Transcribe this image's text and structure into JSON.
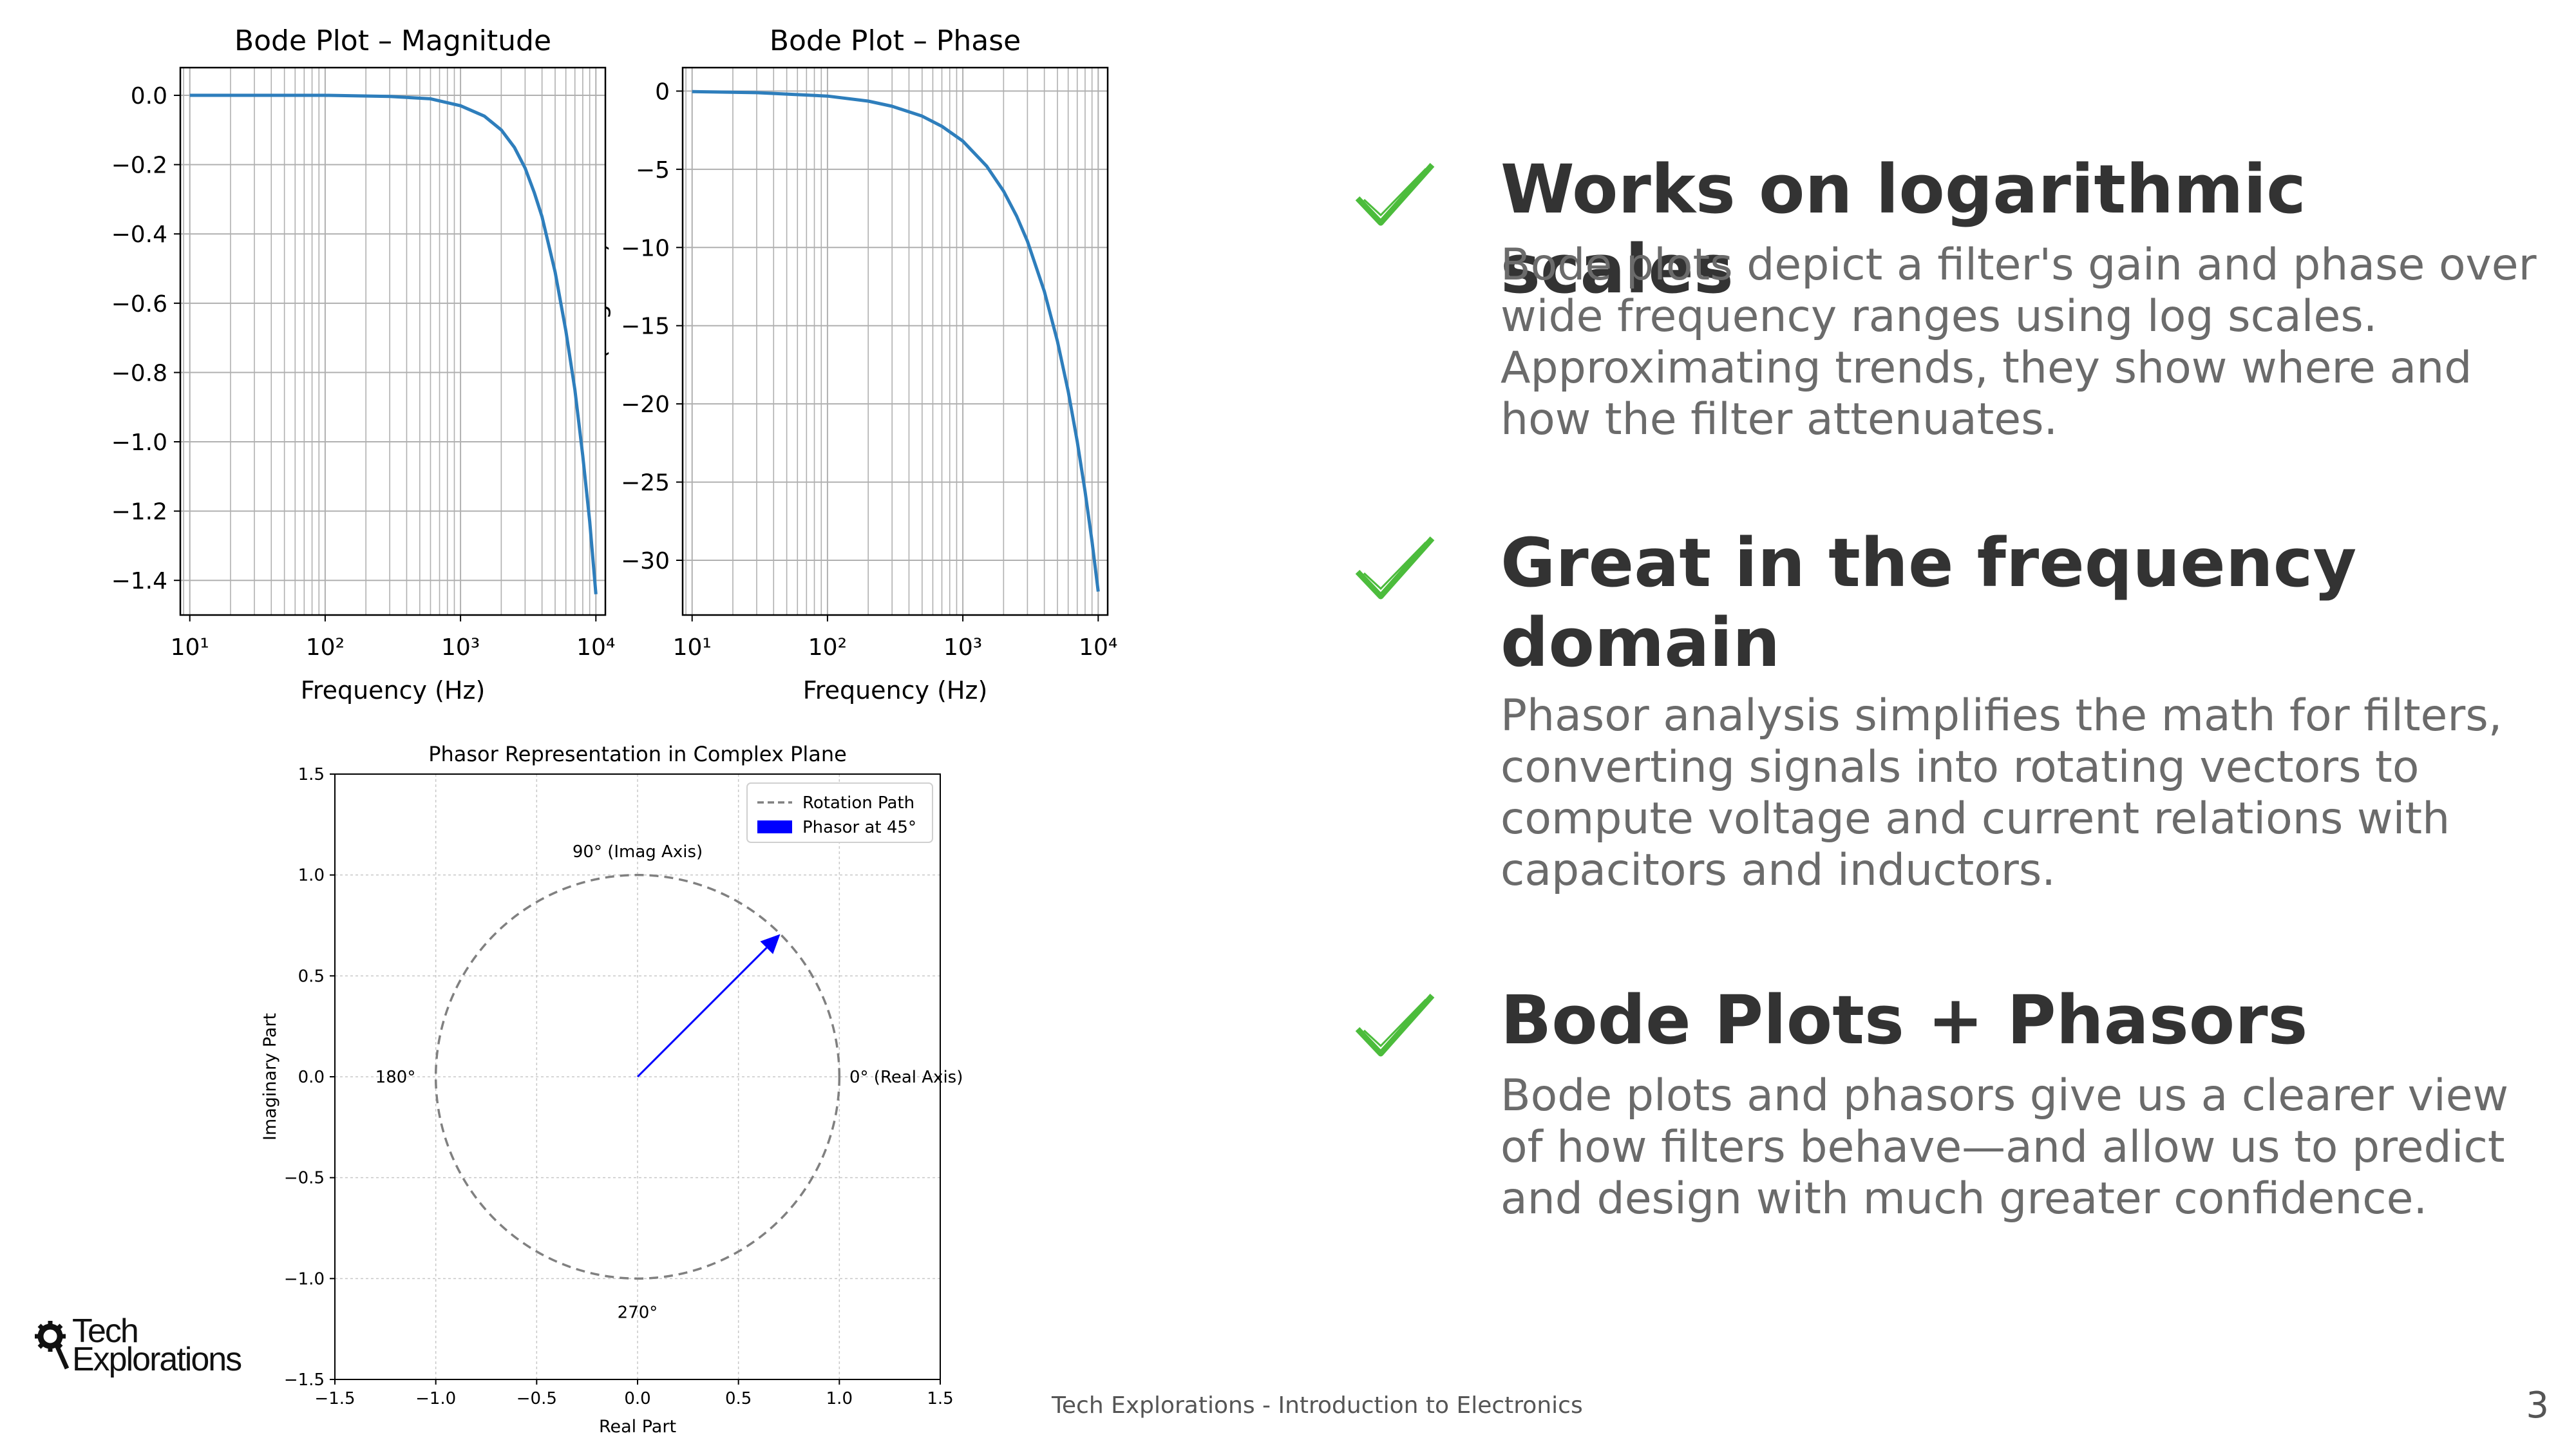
{
  "slide": {
    "footer": "Tech Explorations - Introduction to Electronics",
    "page_number": "3",
    "logo": {
      "line1": "Tech",
      "line2": "Explorations",
      "icon": "gear-magnifier-icon"
    },
    "accent_color": "#4cbc3c"
  },
  "bullets": [
    {
      "icon": "check-icon",
      "title": "Works on logarithmic scales",
      "body": "Bode plots depict a filter's gain and phase over wide frequency ranges using log scales. Approximating trends, they show where and how the filter attenuates."
    },
    {
      "icon": "check-icon",
      "title": "Great in the frequency domain",
      "body": "Phasor analysis simplifies the math for filters, converting signals into rotating vectors to compute voltage and current relations with capacitors and inductors."
    },
    {
      "icon": "check-icon",
      "title": "Bode Plots + Phasors",
      "body": "Bode plots and phasors give us a clearer view of how filters behave—and allow us to predict and design with much greater confidence."
    }
  ],
  "chart_data": [
    {
      "type": "line",
      "title": "Bode Plot – Magnitude",
      "xlabel": "Frequency (Hz)",
      "ylabel": "",
      "xscale": "log",
      "xlim": [
        10,
        10000
      ],
      "ylim": [
        -1.5,
        0.08
      ],
      "yticks": [
        0.0,
        -0.2,
        -0.4,
        -0.6,
        -0.8,
        -1.0,
        -1.2,
        -1.4
      ],
      "xticks": [
        "10¹",
        "10²",
        "10³",
        "10⁴"
      ],
      "grid": "both",
      "color": "#2e7ebc",
      "series": [
        {
          "x": [
            10,
            30,
            100,
            300,
            600,
            1000,
            1500,
            2000,
            2500,
            3000,
            3500,
            4000,
            5000,
            6000,
            7000,
            8000,
            9000,
            10000
          ],
          "y": [
            0.0,
            0.0,
            0.0,
            -0.003,
            -0.01,
            -0.03,
            -0.06,
            -0.1,
            -0.15,
            -0.21,
            -0.28,
            -0.35,
            -0.51,
            -0.68,
            -0.85,
            -1.04,
            -1.23,
            -1.44
          ]
        }
      ]
    },
    {
      "type": "line",
      "title": "Bode Plot – Phase",
      "xlabel": "Frequency (Hz)",
      "ylabel": "Phase (degrees)",
      "xscale": "log",
      "xlim": [
        10,
        10000
      ],
      "ylim": [
        -33.5,
        1.5
      ],
      "yticks": [
        0,
        -5,
        -10,
        -15,
        -20,
        -25,
        -30
      ],
      "xticks": [
        "10¹",
        "10²",
        "10³",
        "10⁴"
      ],
      "grid": "both",
      "color": "#2e7ebc",
      "series": [
        {
          "x": [
            10,
            30,
            100,
            200,
            300,
            500,
            700,
            1000,
            1500,
            2000,
            2500,
            3000,
            4000,
            5000,
            6000,
            7000,
            8000,
            9000,
            10000
          ],
          "y": [
            -0.03,
            -0.1,
            -0.32,
            -0.64,
            -0.97,
            -1.6,
            -2.25,
            -3.2,
            -4.8,
            -6.4,
            -8.0,
            -9.6,
            -12.8,
            -16.0,
            -19.2,
            -22.4,
            -25.6,
            -28.8,
            -32.0
          ]
        }
      ]
    },
    {
      "type": "scatter",
      "title": "Phasor Representation in Complex Plane",
      "xlabel": "Real Part",
      "ylabel": "Imaginary Part",
      "xlim": [
        -1.5,
        1.5
      ],
      "ylim": [
        -1.5,
        1.5
      ],
      "xticks": [
        -1.5,
        -1.0,
        -0.5,
        0.0,
        0.5,
        1.0,
        1.5
      ],
      "yticks": [
        -1.5,
        -1.0,
        -0.5,
        0.0,
        0.5,
        1.0,
        1.5
      ],
      "grid": "both",
      "legend": "top-right",
      "legend_entries": [
        "Rotation Path",
        "Phasor at 45°"
      ],
      "rotation_path": {
        "radius": 1.0,
        "color": "#808080"
      },
      "phasor": {
        "angle_deg": 45,
        "magnitude": 1.0,
        "color": "#0000ff"
      },
      "annotations": [
        {
          "text": "0° (Real Axis)",
          "x": 1.05,
          "y": 0.0
        },
        {
          "text": "90° (Imag Axis)",
          "x": 0.0,
          "y": 1.05
        },
        {
          "text": "180°",
          "x": -1.1,
          "y": 0.0
        },
        {
          "text": "270°",
          "x": 0.0,
          "y": -1.1
        }
      ]
    }
  ]
}
